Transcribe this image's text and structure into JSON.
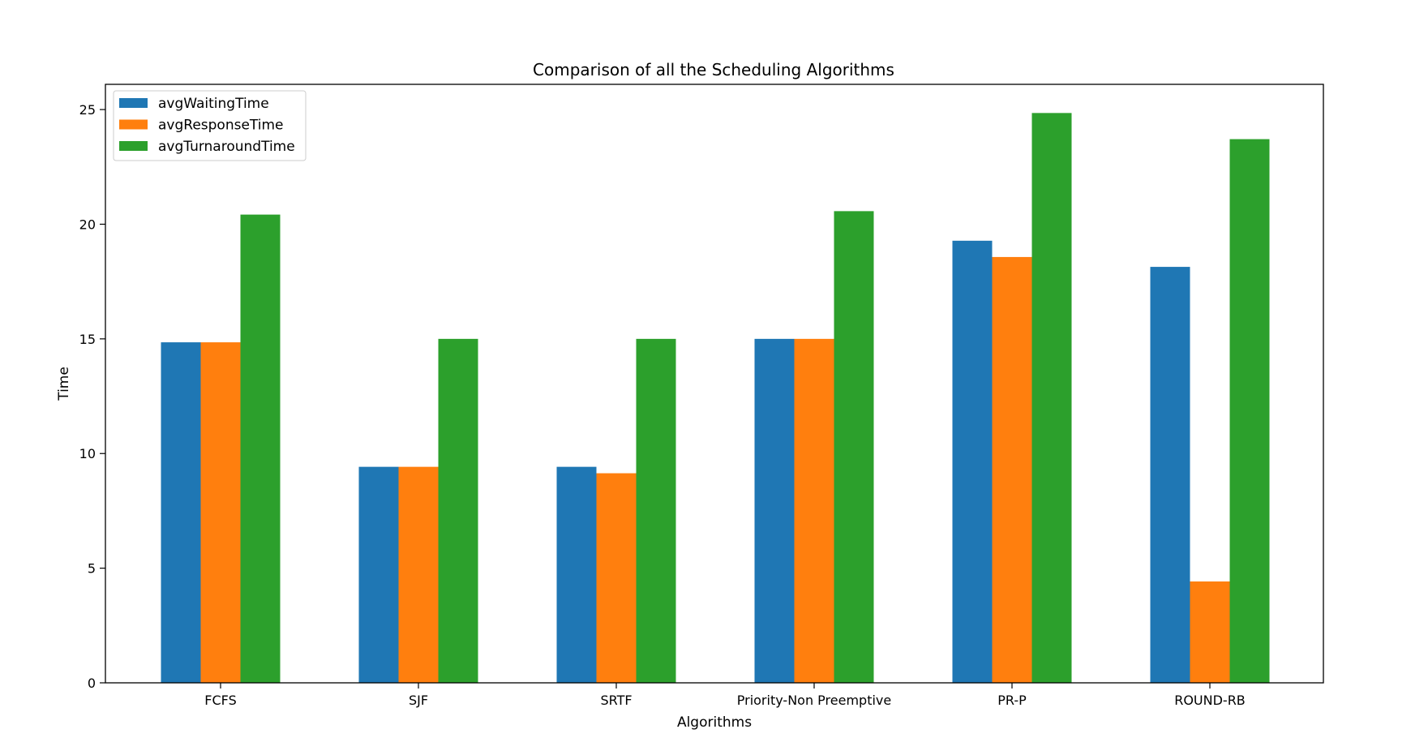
{
  "chart_data": {
    "type": "bar",
    "title": "Comparison of all the Scheduling Algorithms",
    "xlabel": "Algorithms",
    "ylabel": "Time",
    "categories": [
      "FCFS",
      "SJF",
      "SRTF",
      "Priority-Non Preemptive",
      "PR-P",
      "ROUND-RB"
    ],
    "series": [
      {
        "name": "avgWaitingTime",
        "color": "#1f77b4",
        "values": [
          14.85,
          9.42,
          9.42,
          15.0,
          19.28,
          18.14
        ]
      },
      {
        "name": "avgResponseTime",
        "color": "#ff7f0e",
        "values": [
          14.85,
          9.42,
          9.14,
          15.0,
          18.57,
          4.42
        ]
      },
      {
        "name": "avgTurnaroundTime",
        "color": "#2ca02c",
        "values": [
          20.42,
          15.0,
          15.0,
          20.57,
          24.85,
          23.71
        ]
      }
    ],
    "yticks": [
      "0",
      "5",
      "10",
      "15",
      "20",
      "25"
    ],
    "ylim": [
      0,
      26.1
    ],
    "legend_position": "top-left",
    "grid": false
  }
}
